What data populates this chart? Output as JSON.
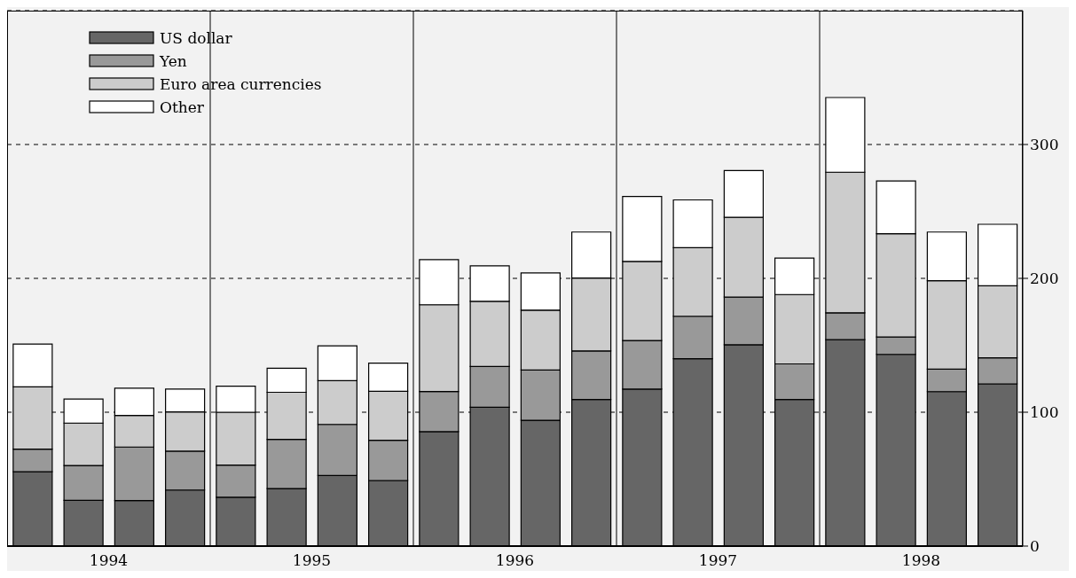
{
  "chart_data": {
    "type": "bar",
    "stacked": true,
    "categories": [
      null,
      "1994",
      null,
      null,
      null,
      "1995",
      null,
      null,
      null,
      "1996",
      null,
      null,
      null,
      "1997",
      null,
      null,
      null,
      "1998",
      null,
      null
    ],
    "series": [
      {
        "name": "US dollar",
        "color": "#666666",
        "values": [
          55.5,
          34.2,
          34,
          41.9,
          36.5,
          43,
          52.7,
          49,
          85.5,
          103.7,
          94,
          109.5,
          117.3,
          140,
          150.4,
          109.5,
          154.2,
          143.2,
          115.4,
          121.2
        ]
      },
      {
        "name": "Yen",
        "color": "#999999",
        "values": [
          17,
          26,
          40,
          29,
          24,
          36.7,
          38.2,
          30,
          30,
          30.5,
          37.6,
          36.3,
          36.3,
          31.7,
          35.6,
          26.6,
          20.1,
          13,
          16.8,
          19.4
        ]
      },
      {
        "name": "Euro area currencies",
        "color": "#cccccc",
        "values": [
          46.4,
          31.7,
          23.6,
          29.4,
          39.5,
          35.2,
          32.7,
          36.7,
          64.8,
          48.6,
          44.7,
          54.5,
          59,
          51.2,
          59.6,
          51.8,
          105,
          77.1,
          66.1,
          53.8
        ]
      },
      {
        "name": "Other",
        "color": "#ffffff",
        "values": [
          32,
          18,
          20.4,
          17,
          19.4,
          18,
          26,
          21,
          33.7,
          26.5,
          27.8,
          34.3,
          48.6,
          35.7,
          35,
          27.3,
          55.8,
          39.5,
          36.3,
          46
        ]
      }
    ],
    "ylim": [
      0,
      400
    ],
    "yticks": [
      0,
      100,
      200,
      300
    ],
    "grid": true,
    "legend": "top left"
  }
}
